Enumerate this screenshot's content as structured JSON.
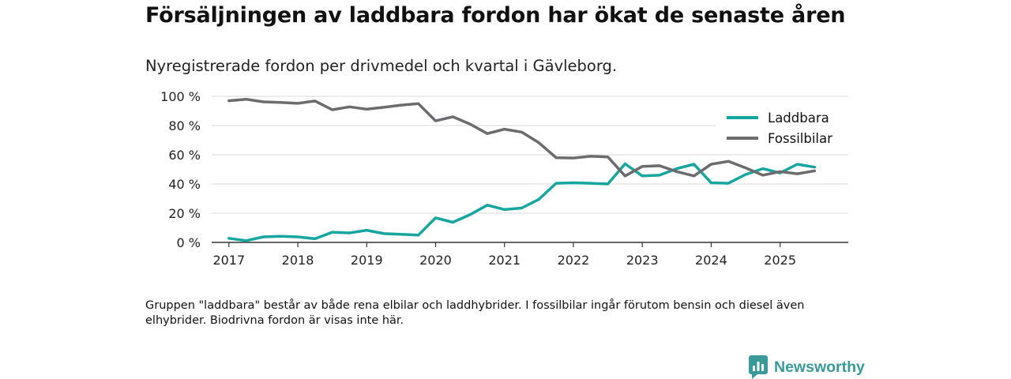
{
  "title": "Försäljningen av laddbara fordon har ökat de senaste åren",
  "subtitle": "Nyregistrerade fordon per drivmedel och kvartal i Gävleborg.",
  "footnote": "Gruppen \"laddbara\" består av både rena elbilar och laddhybrider. I fossilbilar ingår förutom bensin och diesel även elhybrider. Biodrivna fordon är visas inte här.",
  "brand": {
    "name": "Newsworthy",
    "icon": "newsworthy-logo-icon",
    "color": "#3a9a9a"
  },
  "chart_data": {
    "type": "line",
    "title": "Försäljningen av laddbara fordon har ökat de senaste åren",
    "subtitle": "Nyregistrerade fordon per drivmedel och kvartal i Gävleborg.",
    "xlabel": "",
    "ylabel": "",
    "ylim": [
      0,
      100
    ],
    "yticks": [
      0,
      20,
      40,
      60,
      80,
      100
    ],
    "ytick_labels": [
      "0 %",
      "20 %",
      "40 %",
      "60 %",
      "80 %",
      "100 %"
    ],
    "xlim": [
      2016.75,
      2025.99
    ],
    "xticks": [
      2017,
      2018,
      2019,
      2020,
      2021,
      2022,
      2023,
      2024,
      2025
    ],
    "xtick_labels": [
      "2017",
      "2018",
      "2019",
      "2020",
      "2021",
      "2022",
      "2023",
      "2024",
      "2025"
    ],
    "grid": true,
    "legend_position": "top-right",
    "x": [
      2017.0,
      2017.25,
      2017.5,
      2017.75,
      2018.0,
      2018.25,
      2018.5,
      2018.75,
      2019.0,
      2019.25,
      2019.5,
      2019.75,
      2020.0,
      2020.25,
      2020.5,
      2020.75,
      2021.0,
      2021.25,
      2021.5,
      2021.75,
      2022.0,
      2022.25,
      2022.5,
      2022.75,
      2023.0,
      2023.25,
      2023.5,
      2023.75,
      2024.0,
      2024.25,
      2024.5,
      2024.75,
      2025.0,
      2025.25,
      2025.5
    ],
    "series": [
      {
        "name": "Laddbara",
        "color": "#17a69f",
        "values": [
          2.8,
          1.2,
          3.8,
          4.2,
          3.8,
          2.5,
          7.0,
          6.5,
          8.3,
          6.0,
          5.5,
          5.0,
          16.8,
          13.8,
          19.0,
          25.5,
          22.5,
          23.5,
          29.5,
          40.5,
          40.8,
          40.5,
          40.0,
          53.8,
          45.5,
          46.0,
          50.5,
          53.5,
          40.8,
          40.5,
          46.5,
          50.5,
          47.5,
          53.5,
          51.5
        ]
      },
      {
        "name": "Fossilbilar",
        "color": "#6c6c6f",
        "values": [
          97.0,
          98.0,
          96.2,
          95.8,
          95.2,
          96.8,
          90.8,
          92.8,
          91.2,
          92.5,
          94.0,
          95.0,
          83.2,
          86.0,
          81.0,
          74.5,
          77.5,
          75.5,
          68.2,
          58.0,
          57.8,
          59.0,
          58.5,
          45.5,
          52.0,
          52.5,
          48.5,
          45.5,
          53.5,
          55.5,
          51.0,
          46.0,
          48.5,
          47.0,
          49.0
        ]
      }
    ]
  }
}
